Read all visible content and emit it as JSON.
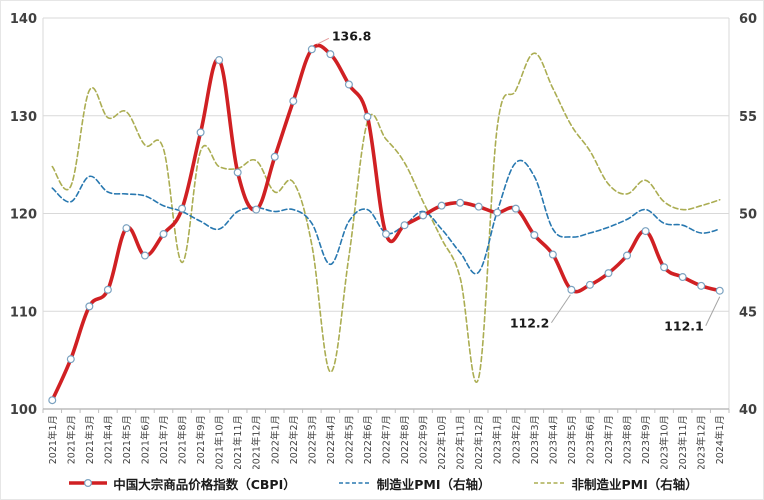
{
  "chart_data": {
    "type": "line",
    "title": "",
    "x_labels": [
      "2021年1月",
      "2021年2月",
      "2021年3月",
      "2021年4月",
      "2021年5月",
      "2021年6月",
      "2021年7月",
      "2021年8月",
      "2021年9月",
      "2021年10月",
      "2021年11月",
      "2021年12月",
      "2022年1月",
      "2022年2月",
      "2022年3月",
      "2022年4月",
      "2022年5月",
      "2022年6月",
      "2022年7月",
      "2022年8月",
      "2022年9月",
      "2022年10月",
      "2022年11月",
      "2022年12月",
      "2023年1月",
      "2023年2月",
      "2023年3月",
      "2023年4月",
      "2023年5月",
      "2023年6月",
      "2023年7月",
      "2023年8月",
      "2023年9月",
      "2023年10月",
      "2023年11月",
      "2023年12月",
      "2024年1月"
    ],
    "left_axis": {
      "min": 100,
      "max": 140,
      "ticks": [
        "100",
        "110",
        "120",
        "130",
        "140"
      ]
    },
    "right_axis": {
      "min": 40,
      "max": 60,
      "ticks": [
        "40",
        "45",
        "50",
        "55",
        "60"
      ]
    },
    "grid": true,
    "legend_position": "bottom",
    "series": [
      {
        "name": "中国大宗商品价格指数（CBPI）",
        "axis": "left",
        "style": "solid",
        "marker": "circle",
        "color": "#d02023",
        "values": [
          100.9,
          105.1,
          110.5,
          112.2,
          118.5,
          115.7,
          117.9,
          120.5,
          128.3,
          135.7,
          124.2,
          120.4,
          125.8,
          131.5,
          136.8,
          136.3,
          133.2,
          129.9,
          117.9,
          118.8,
          119.8,
          120.8,
          121.1,
          120.7,
          120.1,
          120.5,
          117.8,
          115.8,
          112.2,
          112.7,
          113.9,
          115.7,
          118.2,
          114.5,
          113.5,
          112.6,
          112.1
        ]
      },
      {
        "name": "制造业PMI（右轴）",
        "axis": "right",
        "style": "dashed",
        "marker": "none",
        "color": "#2878b0",
        "values": [
          51.3,
          50.6,
          51.9,
          51.1,
          51.0,
          50.9,
          50.4,
          50.1,
          49.6,
          49.2,
          50.1,
          50.3,
          50.1,
          50.2,
          49.5,
          47.4,
          49.6,
          50.2,
          49.0,
          49.4,
          50.1,
          49.2,
          48.0,
          47.0,
          50.1,
          52.6,
          51.9,
          49.2,
          48.8,
          49.0,
          49.3,
          49.7,
          50.2,
          49.5,
          49.4,
          49.0,
          49.2
        ]
      },
      {
        "name": "非制造业PMI（右轴）",
        "axis": "right",
        "style": "dashed",
        "marker": "none",
        "color": "#abad52",
        "values": [
          52.4,
          51.4,
          56.3,
          54.9,
          55.2,
          53.5,
          53.3,
          47.5,
          53.2,
          52.4,
          52.3,
          52.7,
          51.1,
          51.6,
          48.4,
          41.9,
          47.8,
          54.7,
          53.8,
          52.6,
          50.6,
          48.7,
          46.7,
          41.6,
          54.4,
          56.3,
          58.2,
          56.4,
          54.5,
          53.2,
          51.5,
          51.0,
          51.7,
          50.6,
          50.2,
          50.4,
          50.7
        ]
      }
    ],
    "annotations": [
      {
        "text": "136.8",
        "series": 0,
        "point": 14,
        "anchor": "start",
        "text_dx": 20,
        "text_dy": -9,
        "leader": [
          [
            5,
            -5
          ],
          [
            17,
            -11
          ]
        ],
        "leader_color": "#e49c9c"
      },
      {
        "text": "112.2",
        "series": 0,
        "point": 28,
        "anchor": "end",
        "text_dx": -22,
        "text_dy": 38,
        "leader": [
          [
            -20,
            33
          ],
          [
            -1,
            5
          ]
        ],
        "leader_color": "#a6a6a6"
      },
      {
        "text": "112.1",
        "series": 0,
        "point": 36,
        "anchor": "end",
        "text_dx": -16,
        "text_dy": 40,
        "leader": [
          [
            -14,
            35
          ],
          [
            0,
            6
          ]
        ],
        "leader_color": "#a6a6a6"
      }
    ],
    "colors": {
      "grid": "#d9d9d9",
      "axis_line": "#9b9b9b",
      "tick_line": "#bfbfbf",
      "tick_text": "#404040",
      "annotation_text": "#1a1a1a",
      "marker_ring": "#7ba2c0",
      "marker_fill": "#ffffff"
    }
  }
}
